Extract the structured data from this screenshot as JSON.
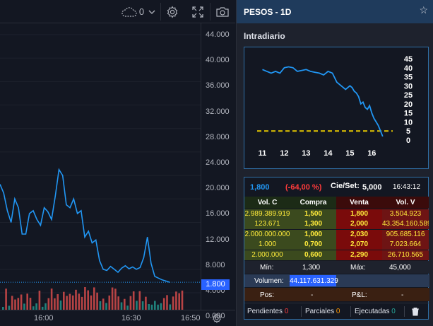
{
  "toolbar": {
    "cloud_count": "0",
    "icons": [
      "cloud-icon",
      "chevron-down-icon",
      "gear-icon",
      "fullscreen-icon",
      "camera-icon"
    ]
  },
  "price_axis": {
    "ticks": [
      "44.000",
      "40.000",
      "36.000",
      "32.000",
      "28.000",
      "24.000",
      "20.000",
      "16.000",
      "12.000",
      "8.000",
      "4.000",
      "0.000"
    ],
    "last_price": "1.800"
  },
  "time_axis": {
    "ticks": [
      "16:00",
      "16:30",
      "16:50"
    ]
  },
  "chart_data": [
    {
      "type": "line",
      "title": "",
      "x_ticks": [
        "16:00",
        "16:30",
        "16:50"
      ],
      "ylim": [
        0,
        44000
      ],
      "y_ticks": [
        44000,
        40000,
        36000,
        32000,
        28000,
        24000,
        20000,
        16000,
        12000,
        8000,
        4000,
        0
      ],
      "series": [
        {
          "name": "",
          "color": "#2196f3",
          "values": [
            18500,
            17000,
            14000,
            12000,
            16000,
            14500,
            10000,
            10000,
            13500,
            14000,
            12500,
            11500,
            14500,
            13800,
            12500,
            16500,
            21000,
            20000,
            15000,
            14500,
            16000,
            13500,
            14000,
            9500,
            10500,
            8500,
            9000,
            5500,
            4000,
            3800,
            4500,
            4000,
            3500,
            4200,
            4600,
            4100,
            4400,
            4000,
            4300,
            6000,
            9500,
            5000,
            2800,
            2500,
            2200,
            2000,
            1800
          ]
        }
      ],
      "volume_colors": {
        "up": "#26a69a",
        "down": "#ef5350"
      },
      "last_value": 1800
    },
    {
      "type": "line",
      "title": "Intradiario",
      "x_ticks": [
        "11",
        "12",
        "13",
        "14",
        "15",
        "16"
      ],
      "y_ticks": [
        45,
        40,
        35,
        30,
        25,
        20,
        15,
        10,
        5,
        0
      ],
      "ylim": [
        0,
        45
      ],
      "reference_line": {
        "value": 5,
        "color": "#e6c800",
        "style": "dashed"
      },
      "series": [
        {
          "name": "",
          "color": "#2196f3",
          "x": [
            11,
            11.2,
            11.4,
            11.6,
            11.8,
            12,
            12.2,
            12.4,
            12.6,
            12.8,
            13,
            13.2,
            13.4,
            13.6,
            13.8,
            14,
            14.2,
            14.4,
            14.6,
            14.8,
            15,
            15.1,
            15.2,
            15.3,
            15.4,
            15.5,
            15.6,
            15.7,
            15.8,
            15.9,
            16,
            16.1,
            16.2,
            16.3,
            16.4,
            16.5
          ],
          "values": [
            39,
            38,
            37,
            38,
            37,
            40,
            40.5,
            40,
            38,
            38.5,
            39,
            38,
            37.5,
            37,
            36,
            38,
            37,
            32,
            30,
            28,
            30,
            29,
            27,
            26,
            24,
            20,
            21,
            18,
            17,
            19,
            15,
            12,
            10,
            8,
            5,
            2
          ]
        }
      ]
    }
  ],
  "panel": {
    "title": "PESOS - 1D",
    "intraday_title": "Intradiario",
    "summary": {
      "last": "1,800",
      "change": "(-64,00 %)",
      "close_label": "Cie/Set:",
      "close_value": "5,000",
      "time": "16:43:12"
    },
    "book_headers": [
      "Vol. C",
      "Compra",
      "Venta",
      "Vol. V"
    ],
    "book_rows": [
      {
        "vol_c": "2.989.389.919",
        "compra": "1,500",
        "venta": "1,800",
        "vol_v": "3.504.923"
      },
      {
        "vol_c": "123.671",
        "compra": "1,300",
        "venta": "2,000",
        "vol_v": "43.354.160.589"
      },
      {
        "vol_c": "2.000.000.000",
        "compra": "1,000",
        "venta": "2,030",
        "vol_v": "905.685.116"
      },
      {
        "vol_c": "1.000",
        "compra": "0,700",
        "venta": "2,070",
        "vol_v": "7.023.664"
      },
      {
        "vol_c": "2.000.000",
        "compra": "0,600",
        "venta": "2,290",
        "vol_v": "26.710.565"
      }
    ],
    "min_label": "Mín:",
    "min_value": "1,300",
    "max_label": "Máx:",
    "max_value": "45,000",
    "volume_label": "Volumen:",
    "volume_value": "44.117.631.329",
    "pos_label": "Pos:",
    "pos_value": "-",
    "pl_label": "P&L:",
    "pl_value": "-",
    "footer": {
      "pendientes_label": "Pendientes",
      "pendientes_count": "0",
      "parciales_label": "Parciales",
      "parciales_count": "0",
      "ejecutadas_label": "Ejecutadas",
      "ejecutadas_count": "0"
    }
  },
  "colors": {
    "bg": "#131722",
    "panel_bg": "#1e222d",
    "accent_blue": "#2196f3",
    "border_blue": "#2f6fa6",
    "buy_green": "#3b4a1e",
    "sell_red": "#5a1212",
    "yellow": "#ffeb3b"
  }
}
